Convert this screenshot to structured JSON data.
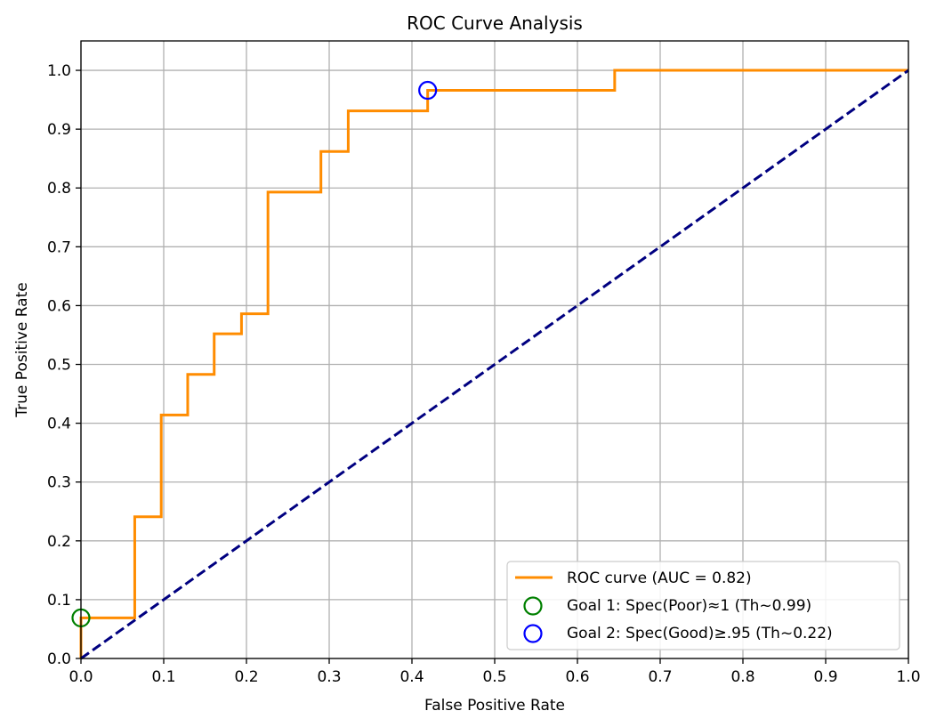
{
  "chart_data": {
    "type": "line",
    "title": "ROC Curve Analysis",
    "xlabel": "False Positive Rate",
    "ylabel": "True Positive Rate",
    "xlim": [
      0.0,
      1.0
    ],
    "ylim": [
      0.0,
      1.05
    ],
    "xticks": [
      "0.0",
      "0.1",
      "0.2",
      "0.3",
      "0.4",
      "0.5",
      "0.6",
      "0.7",
      "0.8",
      "0.9",
      "1.0"
    ],
    "yticks": [
      "0.0",
      "0.1",
      "0.2",
      "0.3",
      "0.4",
      "0.5",
      "0.6",
      "0.7",
      "0.8",
      "0.9",
      "1.0"
    ],
    "grid": true,
    "legend_position": "lower-right",
    "series": [
      {
        "name": "ROC curve (AUC = 0.82)",
        "kind": "step-line",
        "color": "#ff8c00",
        "points": [
          [
            0.0,
            0.0
          ],
          [
            0.0,
            0.069
          ],
          [
            0.065,
            0.069
          ],
          [
            0.065,
            0.241
          ],
          [
            0.097,
            0.241
          ],
          [
            0.097,
            0.414
          ],
          [
            0.129,
            0.414
          ],
          [
            0.129,
            0.483
          ],
          [
            0.161,
            0.483
          ],
          [
            0.161,
            0.552
          ],
          [
            0.194,
            0.552
          ],
          [
            0.194,
            0.586
          ],
          [
            0.226,
            0.586
          ],
          [
            0.226,
            0.793
          ],
          [
            0.29,
            0.793
          ],
          [
            0.29,
            0.862
          ],
          [
            0.323,
            0.862
          ],
          [
            0.323,
            0.931
          ],
          [
            0.419,
            0.931
          ],
          [
            0.419,
            0.966
          ],
          [
            0.645,
            0.966
          ],
          [
            0.645,
            1.0
          ],
          [
            1.0,
            1.0
          ]
        ]
      },
      {
        "kind": "diagonal-dashed",
        "color": "#000080",
        "points": [
          [
            0.0,
            0.0
          ],
          [
            1.0,
            1.0
          ]
        ]
      },
      {
        "name": "Goal 1: Spec(Poor)≈1 (Th~0.99)",
        "kind": "marker-circle",
        "color": "#008000",
        "points": [
          [
            0.0,
            0.069
          ]
        ]
      },
      {
        "name": "Goal 2: Spec(Good)≥.95 (Th~0.22)",
        "kind": "marker-circle",
        "color": "#0000ff",
        "points": [
          [
            0.419,
            0.966
          ]
        ]
      }
    ]
  }
}
